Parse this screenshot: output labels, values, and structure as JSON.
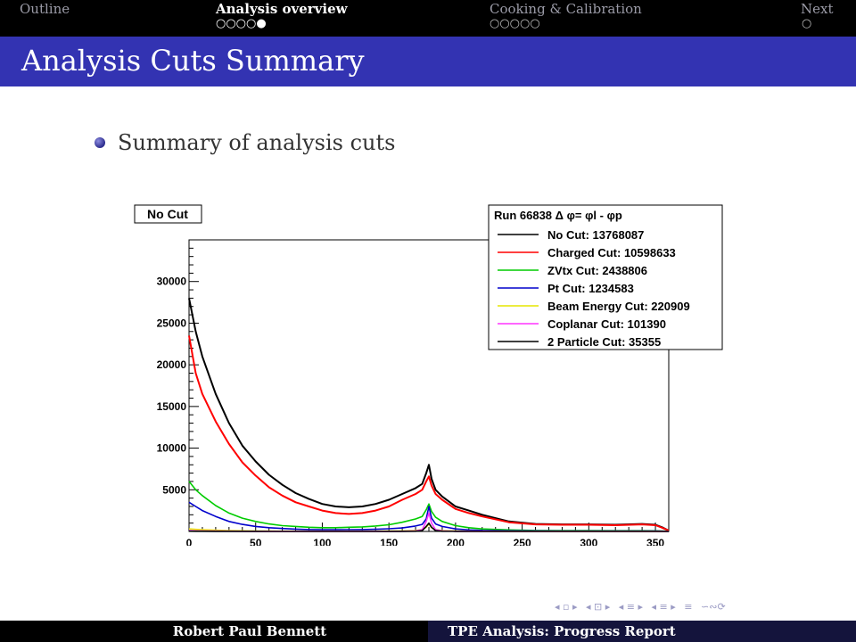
{
  "nav": {
    "sections": [
      {
        "label": "Outline",
        "dots": "",
        "active": false
      },
      {
        "label": "Analysis overview",
        "dots": "○○○○●",
        "active": true
      },
      {
        "label": "Cooking & Calibration",
        "dots": "○○○○○",
        "active": false
      },
      {
        "label": "Next",
        "dots": "○",
        "active": false
      }
    ]
  },
  "frame": {
    "title": "Analysis Cuts Summary"
  },
  "content": {
    "bullet": "Summary of analysis cuts"
  },
  "footer": {
    "author": "Robert Paul Bennett",
    "title": "TPE Analysis: Progress Report"
  },
  "nav_symbols": [
    "◂ ▫ ▸",
    "◂ ⊡ ▸",
    "◂ ≡ ▸",
    "◂ ≡ ▸",
    "≡",
    "∽∾⟳"
  ],
  "chart_data": {
    "type": "line",
    "title": "No Cut",
    "xlabel": "",
    "ylabel": "",
    "xlim": [
      0,
      360
    ],
    "ylim": [
      0,
      35000
    ],
    "xticks": [
      0,
      50,
      100,
      150,
      200,
      250,
      300,
      350
    ],
    "yticks": [
      5000,
      10000,
      15000,
      20000,
      25000,
      30000
    ],
    "legend": {
      "header": "Run 66838 Δ φ= φl - φp",
      "placement": "top-right"
    },
    "x": [
      0,
      5,
      10,
      20,
      30,
      40,
      50,
      60,
      70,
      80,
      90,
      100,
      110,
      120,
      130,
      140,
      150,
      160,
      170,
      175,
      178,
      180,
      182,
      185,
      190,
      200,
      210,
      220,
      240,
      260,
      280,
      300,
      320,
      340,
      350,
      355,
      360
    ],
    "series": [
      {
        "name": "No Cut: 13768087",
        "color": "#000000",
        "values": [
          28000,
          24000,
          21000,
          16500,
          13000,
          10300,
          8400,
          6800,
          5600,
          4600,
          3900,
          3300,
          3000,
          2900,
          3000,
          3300,
          3800,
          4500,
          5200,
          5700,
          7000,
          8000,
          6300,
          5000,
          4200,
          3000,
          2500,
          2000,
          1200,
          900,
          850,
          850,
          800,
          900,
          800,
          500,
          100
        ]
      },
      {
        "name": "Charged Cut: 10598633",
        "color": "#ff0000",
        "values": [
          23500,
          19000,
          16500,
          13200,
          10500,
          8300,
          6700,
          5300,
          4300,
          3500,
          3000,
          2500,
          2200,
          2100,
          2200,
          2500,
          3000,
          3800,
          4500,
          5000,
          6000,
          6600,
          5500,
          4500,
          3800,
          2700,
          2200,
          1800,
          1100,
          850,
          800,
          800,
          750,
          850,
          750,
          450,
          100
        ]
      },
      {
        "name": "ZVtx Cut: 2438806",
        "color": "#00cc00",
        "values": [
          6000,
          5000,
          4300,
          3100,
          2200,
          1600,
          1200,
          900,
          700,
          600,
          500,
          450,
          450,
          500,
          550,
          650,
          800,
          1100,
          1500,
          1800,
          2600,
          3300,
          2400,
          1700,
          1200,
          700,
          450,
          300,
          180,
          120,
          100,
          100,
          90,
          90,
          70,
          50,
          20
        ]
      },
      {
        "name": "Pt Cut: 1234583",
        "color": "#0000cc",
        "values": [
          3500,
          3000,
          2500,
          1800,
          1200,
          850,
          600,
          450,
          350,
          280,
          230,
          200,
          200,
          210,
          230,
          260,
          320,
          420,
          650,
          850,
          1500,
          3000,
          1600,
          900,
          600,
          300,
          180,
          120,
          80,
          60,
          50,
          50,
          50,
          50,
          40,
          30,
          10
        ]
      },
      {
        "name": "Beam Energy Cut: 220909",
        "color": "#e6e600",
        "values": [
          300,
          250,
          200,
          150,
          100,
          70,
          50,
          40,
          30,
          30,
          30,
          30,
          30,
          30,
          30,
          30,
          40,
          60,
          120,
          200,
          500,
          900,
          450,
          200,
          100,
          50,
          30,
          20,
          15,
          10,
          10,
          10,
          10,
          10,
          10,
          5,
          0
        ]
      },
      {
        "name": "Coplanar Cut: 101390",
        "color": "#ff33ff",
        "values": [
          100,
          80,
          60,
          40,
          30,
          20,
          15,
          12,
          10,
          10,
          10,
          10,
          10,
          10,
          10,
          10,
          15,
          20,
          60,
          200,
          1200,
          2200,
          1000,
          200,
          60,
          20,
          10,
          8,
          5,
          5,
          5,
          5,
          5,
          5,
          5,
          3,
          0
        ]
      },
      {
        "name": "2 Particle Cut: 35355",
        "color": "#000000",
        "values": [
          30,
          25,
          20,
          15,
          10,
          8,
          6,
          5,
          5,
          5,
          5,
          5,
          5,
          5,
          5,
          5,
          6,
          8,
          20,
          100,
          600,
          1000,
          500,
          100,
          20,
          8,
          5,
          4,
          3,
          3,
          3,
          3,
          3,
          3,
          3,
          2,
          0
        ]
      }
    ]
  }
}
